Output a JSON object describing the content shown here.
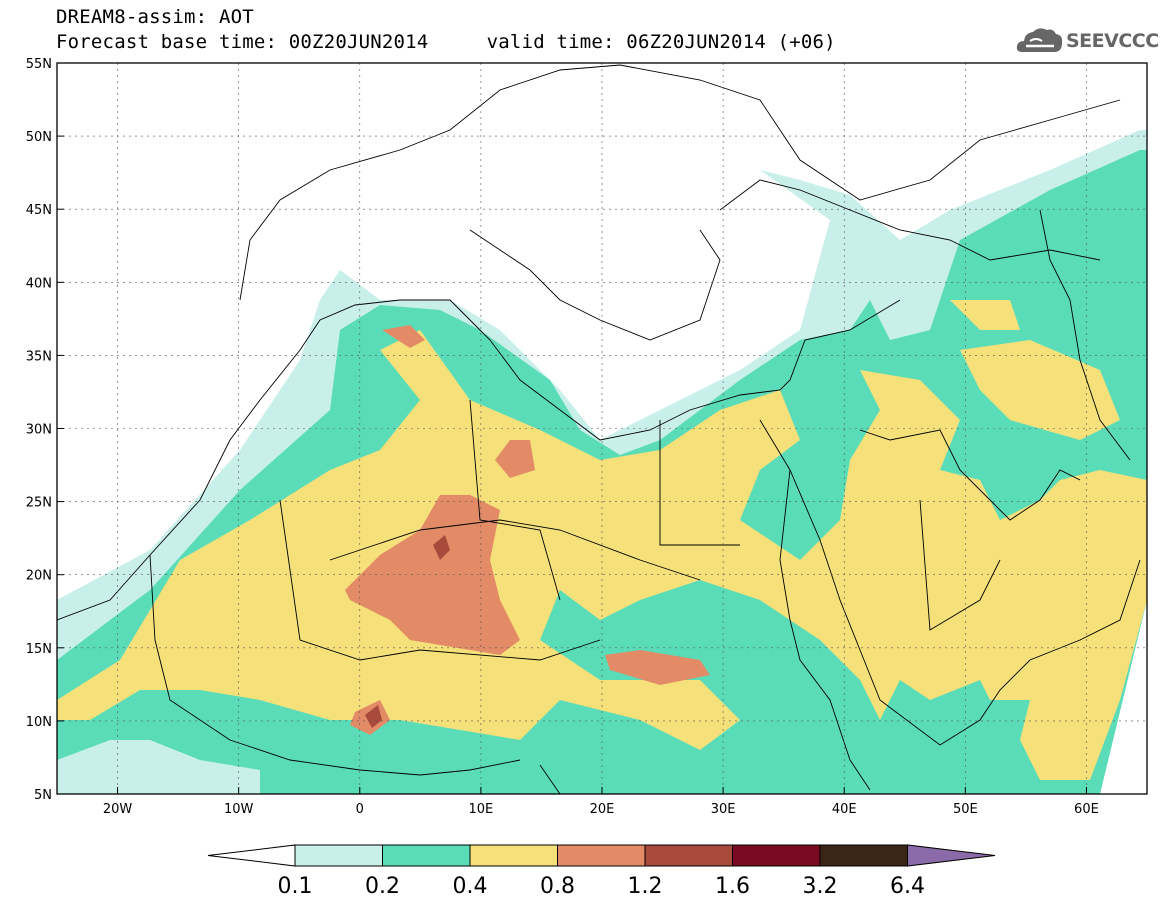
{
  "header": {
    "title_line1": "DREAM8-assim: AOT",
    "title_line2": "Forecast base time: 00Z20JUN2014     valid time: 06Z20JUN2014 (+06)"
  },
  "logo": {
    "text": "SEEVCCC",
    "icon": "cloud-icon"
  },
  "map": {
    "lon_range": [
      -25,
      65
    ],
    "lat_range": [
      5,
      55
    ],
    "lon_ticks": [
      {
        "value": -20,
        "label": "20W"
      },
      {
        "value": -10,
        "label": "10W"
      },
      {
        "value": 0,
        "label": "0"
      },
      {
        "value": 10,
        "label": "10E"
      },
      {
        "value": 20,
        "label": "20E"
      },
      {
        "value": 30,
        "label": "30E"
      },
      {
        "value": 40,
        "label": "40E"
      },
      {
        "value": 50,
        "label": "50E"
      },
      {
        "value": 60,
        "label": "60E"
      }
    ],
    "lat_ticks": [
      {
        "value": 5,
        "label": "5N"
      },
      {
        "value": 10,
        "label": "10N"
      },
      {
        "value": 15,
        "label": "15N"
      },
      {
        "value": 20,
        "label": "20N"
      },
      {
        "value": 25,
        "label": "25N"
      },
      {
        "value": 30,
        "label": "30N"
      },
      {
        "value": 35,
        "label": "35N"
      },
      {
        "value": 40,
        "label": "40N"
      },
      {
        "value": 45,
        "label": "45N"
      },
      {
        "value": 50,
        "label": "50N"
      },
      {
        "value": 55,
        "label": "55N"
      }
    ],
    "gridlines": true
  },
  "colorbar": {
    "labels": [
      "0.1",
      "0.2",
      "0.4",
      "0.8",
      "1.2",
      "1.6",
      "3.2",
      "6.4"
    ],
    "colors": [
      "#ffffff",
      "#c8efe9",
      "#5bdcb8",
      "#f5e07a",
      "#e38a66",
      "#a84a3c",
      "#7a0a22",
      "#3a2517",
      "#8a6aa8"
    ]
  }
}
